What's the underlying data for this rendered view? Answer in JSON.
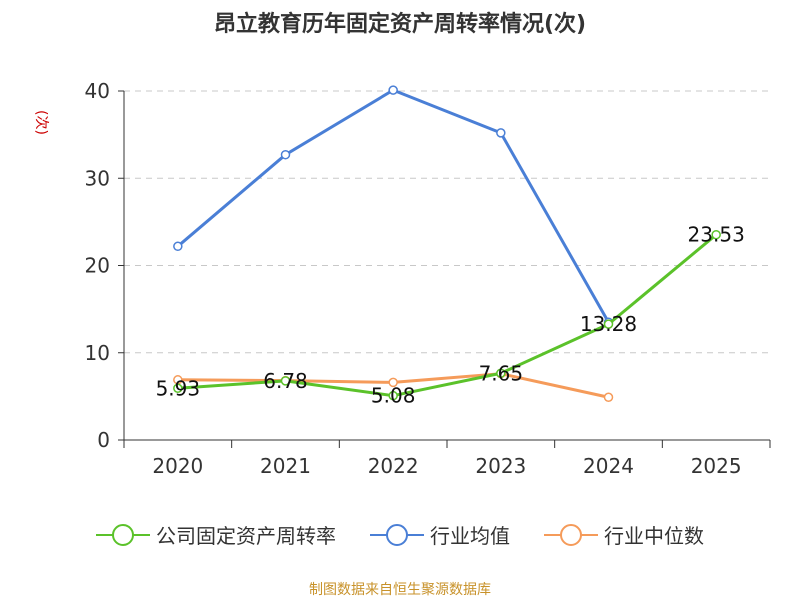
{
  "chart_data": {
    "type": "line",
    "title": "昂立教育历年固定资产周转率情况(次)",
    "ylabel_unit": "(次)",
    "categories": [
      "2020",
      "2021",
      "2022",
      "2023",
      "2024",
      "2025"
    ],
    "ylim": [
      0,
      40
    ],
    "yticks": [
      "0",
      "10",
      "20",
      "30",
      "40"
    ],
    "grid": true,
    "legend_position": "bottom",
    "series": [
      {
        "name": "公司固定资产周转率",
        "color": "#5bc22a",
        "values": [
          5.93,
          6.78,
          5.08,
          7.65,
          13.28,
          23.53
        ],
        "labels": [
          "5.93",
          "6.78",
          "5.08",
          "7.65",
          "13.28",
          "23.53"
        ]
      },
      {
        "name": "行业均值",
        "color": "#4a7fd6",
        "values": [
          22.2,
          32.7,
          40.1,
          35.2,
          13.5,
          null
        ]
      },
      {
        "name": "行业中位数",
        "color": "#f59b5a",
        "values": [
          6.9,
          6.8,
          6.6,
          7.6,
          4.9,
          null
        ]
      }
    ]
  },
  "source": "制图数据来自恒生聚源数据库"
}
